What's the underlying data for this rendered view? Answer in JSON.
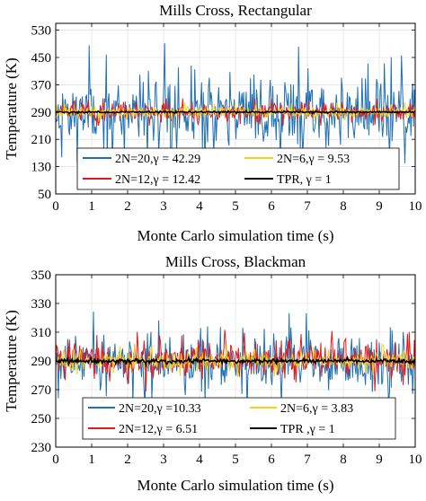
{
  "colors": {
    "blue": "#1f6fb5",
    "red": "#e31a1c",
    "yellow": "#f2d21b",
    "black": "#000000",
    "axis": "#000000",
    "grid": "#d9d9d9"
  },
  "chart_data": [
    {
      "type": "line",
      "title": "Mills Cross, Rectangular",
      "xlabel": "Monte Carlo simulation time (s)",
      "ylabel": "Temperature (K)",
      "xlim": [
        0,
        10
      ],
      "ylim": [
        50,
        550
      ],
      "xticks": [
        0,
        1,
        2,
        3,
        4,
        5,
        6,
        7,
        8,
        9,
        10
      ],
      "yticks": [
        50,
        130,
        210,
        290,
        370,
        450,
        530
      ],
      "grid": true,
      "legend_position": "lower-center",
      "series": [
        {
          "name": "2N=20,γ = 42.29",
          "color": "blue",
          "mean": 290,
          "spread": 100,
          "min": 140,
          "max": 545,
          "seed": 11
        },
        {
          "name": "2N=12,γ = 12.42",
          "color": "red",
          "mean": 290,
          "spread": 22,
          "min": 250,
          "max": 330,
          "seed": 23
        },
        {
          "name": "2N=6,γ = 9.53",
          "color": "yellow",
          "mean": 290,
          "spread": 14,
          "min": 262,
          "max": 318,
          "seed": 37
        },
        {
          "name": "TPR, γ = 1",
          "color": "black",
          "mean": 290,
          "spread": 2,
          "min": 286,
          "max": 294,
          "seed": 41
        }
      ]
    },
    {
      "type": "line",
      "title": "Mills Cross, Blackman",
      "xlabel": "Monte Carlo simulation time (s)",
      "ylabel": "Temperature (K)",
      "xlim": [
        0,
        10
      ],
      "ylim": [
        230,
        350
      ],
      "xticks": [
        0,
        1,
        2,
        3,
        4,
        5,
        6,
        7,
        8,
        9,
        10
      ],
      "yticks": [
        230,
        250,
        270,
        290,
        310,
        330,
        350
      ],
      "grid": true,
      "legend_position": "lower-center",
      "series": [
        {
          "name": "2N=20,γ =10.33",
          "color": "blue",
          "mean": 290,
          "spread": 17,
          "min": 232,
          "max": 347,
          "seed": 53
        },
        {
          "name": "2N=12,γ = 6.51",
          "color": "red",
          "mean": 290,
          "spread": 10,
          "min": 262,
          "max": 318,
          "seed": 67
        },
        {
          "name": "2N=6,γ = 3.83",
          "color": "yellow",
          "mean": 290,
          "spread": 6,
          "min": 274,
          "max": 306,
          "seed": 71
        },
        {
          "name": "TPR ,γ = 1",
          "color": "black",
          "mean": 290,
          "spread": 1.2,
          "min": 287,
          "max": 293,
          "seed": 83
        }
      ]
    }
  ]
}
